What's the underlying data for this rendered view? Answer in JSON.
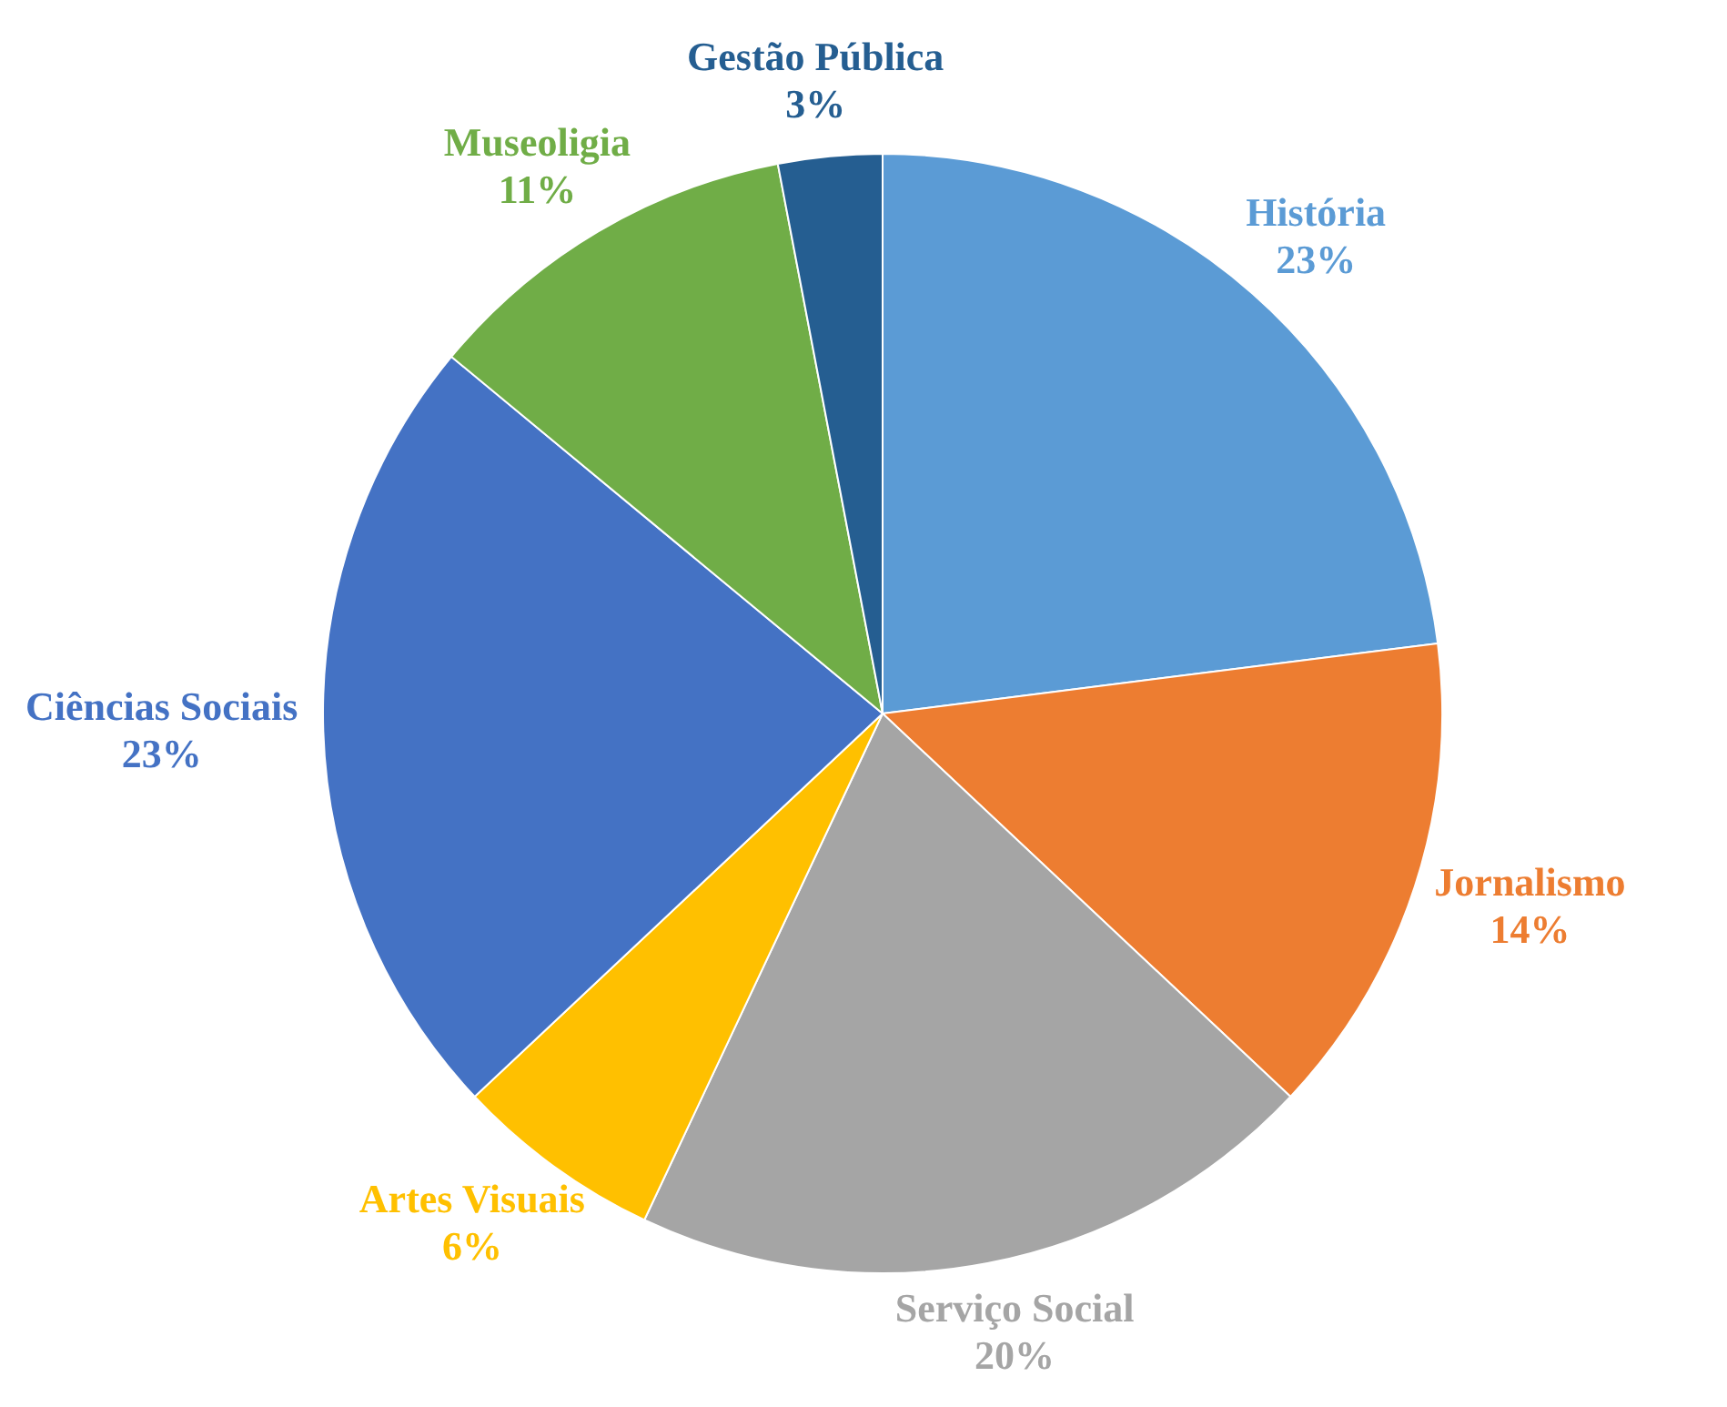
{
  "chart_data": {
    "type": "pie",
    "categories": [
      "História",
      "Jornalismo",
      "Serviço Social",
      "Artes Visuais",
      "Ciências Sociais",
      "Museoligia",
      "Gestão Pública"
    ],
    "values": [
      23,
      14,
      20,
      6,
      23,
      11,
      3
    ],
    "colors": [
      "#5b9bd5",
      "#ed7d31",
      "#a5a5a5",
      "#ffc000",
      "#4472c4",
      "#70ad47",
      "#255e91"
    ],
    "value_labels": [
      "23%",
      "14%",
      "20%",
      "6%",
      "23%",
      "11%",
      "3%"
    ],
    "legend": false
  }
}
